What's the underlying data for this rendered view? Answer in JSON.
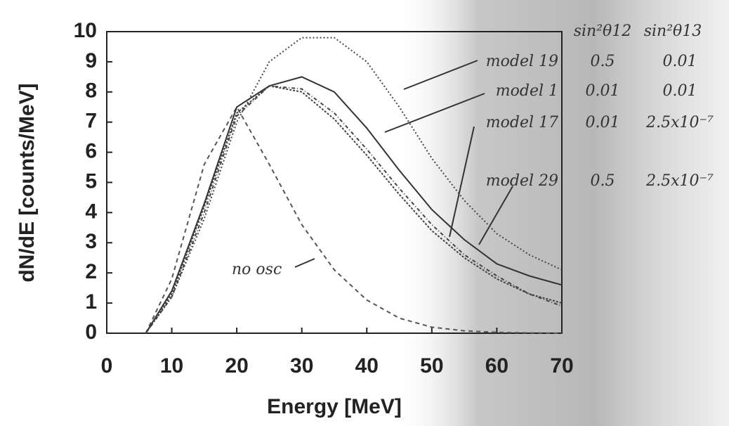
{
  "chart_data": {
    "type": "line",
    "x_label": "Energy [MeV]",
    "y_label": "dN/dE [counts/MeV]",
    "x": [
      6,
      10,
      15,
      20,
      25,
      30,
      35,
      40,
      45,
      50,
      55,
      60,
      65,
      70
    ],
    "series": [
      {
        "name": "no osc",
        "color": "#555",
        "dash": "6,5",
        "values": [
          0,
          1.8,
          5.6,
          7.5,
          5.6,
          3.6,
          2.1,
          1.1,
          0.5,
          0.2,
          0.08,
          0.03,
          0.01,
          0
        ]
      },
      {
        "name": "model 19",
        "color": "#444",
        "dash": "2,3",
        "values": [
          0,
          1.2,
          3.8,
          7.0,
          9.0,
          9.8,
          9.8,
          9.0,
          7.5,
          5.8,
          4.4,
          3.3,
          2.6,
          2.1
        ]
      },
      {
        "name": "model 1",
        "color": "#444",
        "dash": "5,3,1,3",
        "values": [
          0,
          1.2,
          4.0,
          7.2,
          8.2,
          8.1,
          7.3,
          6.1,
          4.8,
          3.6,
          2.6,
          1.9,
          1.3,
          0.9
        ]
      },
      {
        "name": "model 17",
        "color": "#333",
        "dash": "none",
        "values": [
          0,
          1.4,
          4.3,
          7.5,
          8.2,
          8.5,
          8.0,
          6.8,
          5.4,
          4.1,
          3.1,
          2.3,
          1.9,
          1.6
        ]
      },
      {
        "name": "model 29",
        "color": "#444",
        "dash": "3,2",
        "values": [
          0,
          1.3,
          4.2,
          7.3,
          8.2,
          8.0,
          7.1,
          5.9,
          4.6,
          3.4,
          2.5,
          1.8,
          1.3,
          1.0
        ]
      }
    ],
    "xlim": [
      0,
      70
    ],
    "ylim": [
      0,
      10
    ],
    "xticks": [
      0,
      10,
      20,
      30,
      40,
      50,
      60,
      70
    ],
    "yticks": [
      0,
      1,
      2,
      3,
      4,
      5,
      6,
      7,
      8,
      9,
      10
    ],
    "annotations": {
      "header": [
        "sin²θ12",
        "sin²θ13"
      ],
      "rows": [
        {
          "series": 1,
          "sin12": "0.5",
          "sin13": "0.01"
        },
        {
          "series": 2,
          "sin12": "0.01",
          "sin13": "0.01"
        },
        {
          "series": 3,
          "sin12": "0.01",
          "sin13": "2.5x10⁻⁷"
        },
        {
          "series": 4,
          "sin12": "0.5",
          "sin13": "2.5x10⁻⁷"
        }
      ]
    }
  }
}
